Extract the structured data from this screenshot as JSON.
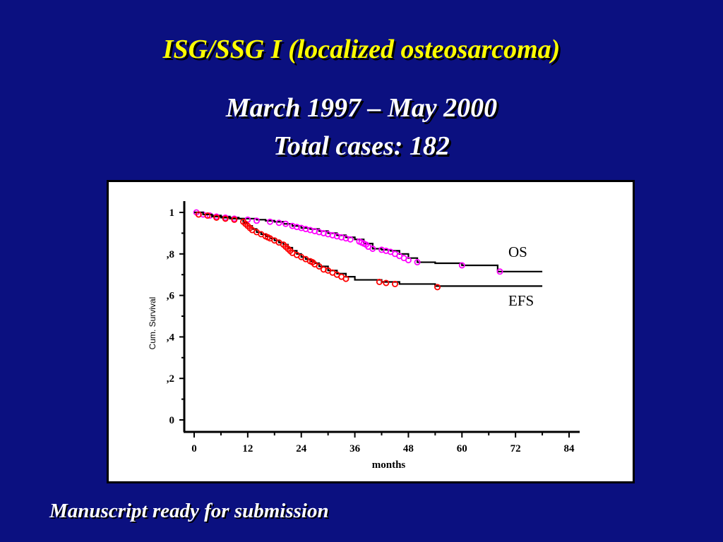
{
  "slide": {
    "title": "ISG/SSG I (localized osteosarcoma)",
    "subtitle_line1": "March 1997 – May 2000",
    "subtitle_line2": "Total cases: 182",
    "footer": "Manuscript ready for submission"
  },
  "colors": {
    "background": "#0b1080",
    "title": "#ffff00",
    "os_marker": "#ff00ff",
    "efs_marker": "#ff0000",
    "curve": "#000000"
  },
  "chart_data": {
    "type": "line",
    "xlabel": "months",
    "ylabel": "Cum. Survival",
    "xlim": [
      0,
      84
    ],
    "ylim": [
      0,
      1
    ],
    "x_ticks": [
      0,
      12,
      24,
      36,
      48,
      60,
      72,
      84
    ],
    "x_tick_labels": [
      "0",
      "12",
      "24",
      "36",
      "48",
      "60",
      "72",
      "84"
    ],
    "y_ticks": [
      0,
      0.2,
      0.4,
      0.6,
      0.8,
      1
    ],
    "y_tick_labels": [
      "0",
      ",2",
      ",4",
      ",6",
      ",8",
      "1"
    ],
    "grid": false,
    "series": [
      {
        "name": "OS",
        "color": "#ff00ff",
        "step_x": [
          0,
          2,
          4,
          6,
          8,
          10,
          12,
          14,
          16,
          18,
          20,
          22,
          24,
          26,
          28,
          30,
          32,
          34,
          36,
          38,
          40,
          42,
          44,
          46,
          48,
          50,
          54,
          60,
          68,
          78
        ],
        "step_y": [
          1.0,
          0.99,
          0.985,
          0.98,
          0.975,
          0.97,
          0.97,
          0.965,
          0.96,
          0.955,
          0.945,
          0.935,
          0.925,
          0.92,
          0.91,
          0.9,
          0.89,
          0.88,
          0.87,
          0.85,
          0.825,
          0.82,
          0.815,
          0.8,
          0.78,
          0.76,
          0.755,
          0.745,
          0.715,
          0.715
        ],
        "censored_x": [
          0.5,
          2,
          3.5,
          5,
          7,
          9,
          12,
          14,
          17,
          19,
          20.5,
          22,
          23,
          24,
          25,
          26,
          27,
          28,
          29,
          30,
          31,
          32,
          33,
          34,
          35,
          37,
          37.5,
          38,
          38.5,
          39,
          40,
          42,
          43,
          44,
          45,
          46,
          47,
          48,
          50,
          60,
          68.5
        ],
        "censored_y": [
          1.0,
          0.99,
          0.985,
          0.98,
          0.975,
          0.97,
          0.965,
          0.96,
          0.955,
          0.95,
          0.945,
          0.935,
          0.93,
          0.925,
          0.92,
          0.915,
          0.91,
          0.905,
          0.9,
          0.895,
          0.89,
          0.885,
          0.88,
          0.875,
          0.87,
          0.86,
          0.855,
          0.85,
          0.845,
          0.835,
          0.825,
          0.82,
          0.815,
          0.81,
          0.8,
          0.79,
          0.78,
          0.77,
          0.76,
          0.745,
          0.715
        ]
      },
      {
        "name": "EFS",
        "color": "#ff0000",
        "step_x": [
          0,
          2,
          4,
          6,
          8,
          10,
          11,
          12,
          13,
          14,
          15,
          16,
          17,
          18,
          19,
          20,
          21,
          22,
          23,
          24,
          25,
          26,
          27,
          28,
          30,
          32,
          34,
          36,
          42,
          46,
          54,
          78
        ],
        "step_y": [
          1.0,
          0.99,
          0.98,
          0.975,
          0.97,
          0.97,
          0.95,
          0.935,
          0.92,
          0.905,
          0.895,
          0.885,
          0.875,
          0.865,
          0.855,
          0.845,
          0.83,
          0.815,
          0.8,
          0.785,
          0.775,
          0.765,
          0.755,
          0.74,
          0.72,
          0.705,
          0.69,
          0.675,
          0.665,
          0.655,
          0.645,
          0.645
        ],
        "censored_x": [
          1,
          3,
          5,
          7,
          9,
          11,
          11.5,
          12,
          12.5,
          13,
          14,
          15,
          16,
          16.5,
          17,
          18,
          19,
          20,
          20.5,
          21,
          21.5,
          22,
          23,
          24,
          25,
          26,
          26.5,
          27,
          28,
          29,
          30,
          31,
          32,
          33,
          34,
          41.5,
          43,
          45,
          54.5
        ],
        "censored_y": [
          0.99,
          0.985,
          0.975,
          0.97,
          0.965,
          0.955,
          0.945,
          0.935,
          0.925,
          0.915,
          0.905,
          0.895,
          0.885,
          0.88,
          0.875,
          0.865,
          0.855,
          0.845,
          0.835,
          0.825,
          0.815,
          0.805,
          0.795,
          0.785,
          0.775,
          0.765,
          0.76,
          0.75,
          0.74,
          0.725,
          0.72,
          0.71,
          0.7,
          0.69,
          0.68,
          0.665,
          0.66,
          0.655,
          0.64
        ]
      }
    ]
  }
}
